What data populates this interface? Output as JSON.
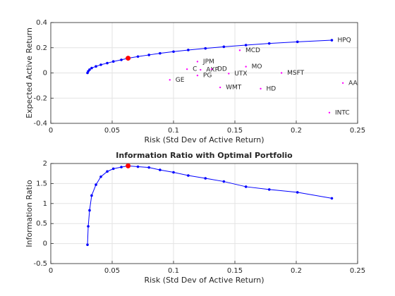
{
  "chart_data": [
    {
      "type": "line",
      "xlabel": "Risk (Std Dev of Active Return)",
      "ylabel": "Expected Active Return",
      "x": [
        0.0299,
        0.0305,
        0.0316,
        0.0333,
        0.0368,
        0.0408,
        0.046,
        0.051,
        0.0575,
        0.063,
        0.071,
        0.08,
        0.089,
        0.1,
        0.112,
        0.126,
        0.141,
        0.159,
        0.178,
        0.201,
        0.229
      ],
      "values": [
        0,
        0.013,
        0.026,
        0.039,
        0.052,
        0.065,
        0.078,
        0.091,
        0.104,
        0.117,
        0.13,
        0.143,
        0.156,
        0.169,
        0.182,
        0.195,
        0.208,
        0.221,
        0.234,
        0.247,
        0.26
      ],
      "color": "#0000ff",
      "highlight": {
        "x": 0.063,
        "y": 0.117,
        "color": "#ff0000"
      },
      "points": {
        "labels": [
          "HPQ",
          "MCD",
          "JPM",
          "C",
          "AXP",
          "DD",
          "MO",
          "PG",
          "UTX",
          "MSFT",
          "GE",
          "WMT",
          "HD",
          "AA",
          "INTC"
        ],
        "x": [
          0.229,
          0.154,
          0.1195,
          0.111,
          0.122,
          0.131,
          0.159,
          0.1195,
          0.145,
          0.188,
          0.097,
          0.138,
          0.171,
          0.238,
          0.227
        ],
        "y": [
          0.26,
          0.18,
          0.09,
          0.03,
          0.025,
          0.03,
          0.05,
          -0.02,
          -0.005,
          0,
          -0.055,
          -0.115,
          -0.125,
          -0.08,
          -0.315
        ],
        "color": "#ff00ff"
      },
      "xlim": [
        0,
        0.25
      ],
      "xticks": [
        0,
        0.05,
        0.1,
        0.15,
        0.2,
        0.25
      ],
      "ylim": [
        -0.4,
        0.4
      ],
      "yticks": [
        -0.4,
        -0.2,
        0,
        0.2,
        0.4
      ],
      "grid": true
    },
    {
      "type": "line",
      "title": "Information Ratio with Optimal Portfolio",
      "xlabel": "Risk (Std Dev of Active Return)",
      "ylabel": "Information Ratio",
      "x": [
        0.0299,
        0.0305,
        0.0316,
        0.0333,
        0.0368,
        0.0408,
        0.046,
        0.051,
        0.0575,
        0.063,
        0.071,
        0.08,
        0.089,
        0.1,
        0.112,
        0.126,
        0.141,
        0.159,
        0.178,
        0.201,
        0.229
      ],
      "values": [
        -0.03,
        0.43,
        0.83,
        1.2,
        1.47,
        1.67,
        1.8,
        1.87,
        1.91,
        1.94,
        1.92,
        1.9,
        1.84,
        1.78,
        1.7,
        1.63,
        1.55,
        1.42,
        1.35,
        1.28,
        1.13
      ],
      "color": "#0000ff",
      "highlight": {
        "x": 0.063,
        "y": 1.94,
        "color": "#ff0000"
      },
      "xlim": [
        0,
        0.25
      ],
      "xticks": [
        0,
        0.05,
        0.1,
        0.15,
        0.2,
        0.25
      ],
      "ylim": [
        -0.5,
        2
      ],
      "yticks": [
        -0.5,
        0,
        0.5,
        1,
        1.5,
        2
      ],
      "grid": true
    }
  ]
}
